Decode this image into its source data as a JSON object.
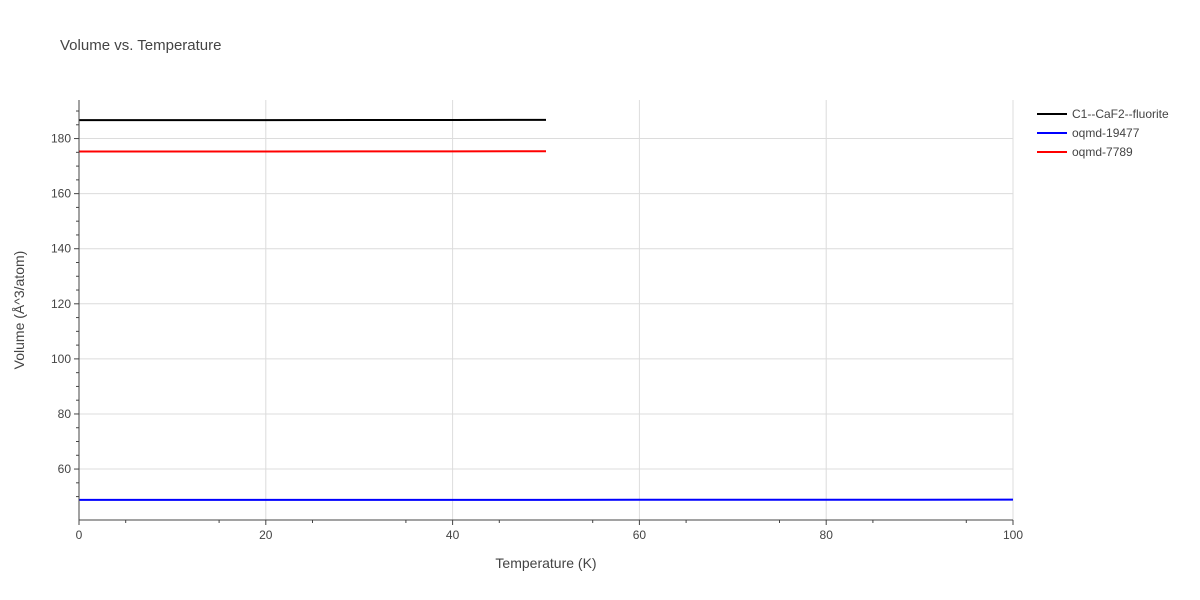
{
  "chart_data": {
    "type": "line",
    "title": "Volume vs. Temperature",
    "xlabel": "Temperature (K)",
    "ylabel": "Volume (Å^3/atom)",
    "xlim": [
      0,
      100
    ],
    "ylim": [
      41.5,
      194
    ],
    "x_ticks": [
      0,
      20,
      40,
      60,
      80,
      100
    ],
    "y_ticks": [
      60,
      80,
      100,
      120,
      140,
      160,
      180
    ],
    "grid": true,
    "legend_position": "top-right",
    "series": [
      {
        "name": "C1--CaF2--fluorite",
        "color": "#000000",
        "x": [
          0,
          10,
          20,
          30,
          40,
          50
        ],
        "y": [
          186.7,
          186.7,
          186.7,
          186.75,
          186.75,
          186.8
        ]
      },
      {
        "name": "oqmd-19477",
        "color": "#0000ff",
        "x": [
          0,
          10,
          20,
          30,
          40,
          50,
          60,
          70,
          80,
          90,
          100
        ],
        "y": [
          48.8,
          48.8,
          48.8,
          48.8,
          48.8,
          48.82,
          48.83,
          48.84,
          48.85,
          48.87,
          48.9
        ]
      },
      {
        "name": "oqmd-7789",
        "color": "#ff0000",
        "x": [
          0,
          10,
          20,
          30,
          40,
          50
        ],
        "y": [
          175.3,
          175.3,
          175.3,
          175.35,
          175.35,
          175.4
        ]
      }
    ]
  }
}
